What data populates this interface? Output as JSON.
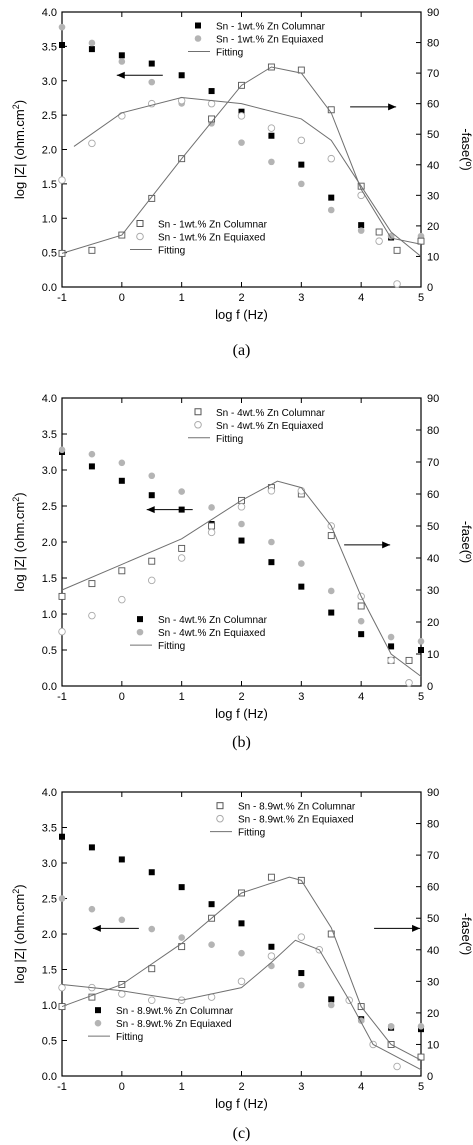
{
  "chart_data": [
    {
      "type": "scatter",
      "caption": "(a)",
      "xlabel": "log f (Hz)",
      "ylabel_left": "log |Z| (ohm.cm",
      "ylabel_left_sup": "2",
      "ylabel_left_end": ")",
      "ylabel_right": "-fase(º)",
      "xlim": [
        -1,
        5
      ],
      "ylim_left": [
        0,
        4
      ],
      "ylim_right": [
        0,
        90
      ],
      "xticks": [
        "-1",
        "0",
        "1",
        "2",
        "3",
        "4",
        "5"
      ],
      "yticks_left": [
        "0.0",
        "0.5",
        "1.0",
        "1.5",
        "2.0",
        "2.5",
        "3.0",
        "3.5",
        "4.0"
      ],
      "yticks_right": [
        "0",
        "10",
        "20",
        "30",
        "40",
        "50",
        "60",
        "70",
        "80",
        "90"
      ],
      "legend_mag": {
        "placement": "top-center",
        "entries": [
          "Sn - 1wt.% Zn Columnar",
          "Sn - 1wt.% Zn Equiaxed",
          "Fitting"
        ]
      },
      "legend_phase": {
        "placement": "bottom-center",
        "entries": [
          "Sn - 1wt.% Zn Columnar",
          "Sn - 1wt.% Zn Equiaxed",
          "Fitting"
        ]
      },
      "arrows": [
        {
          "points_to": "left",
          "at": [
            0.3,
            3.08
          ]
        },
        {
          "points_to": "right",
          "at": [
            4.2,
            2.62
          ]
        }
      ],
      "series": [
        {
          "name": "Sn - 1wt.% Zn Columnar",
          "axis": "left",
          "marker": "filled-square",
          "color": "#000000",
          "x": [
            -1,
            -0.5,
            0,
            0.5,
            1,
            1.5,
            2,
            2.5,
            3,
            3.5,
            4,
            4.5,
            5
          ],
          "y": [
            3.52,
            3.46,
            3.37,
            3.25,
            3.08,
            2.85,
            2.55,
            2.2,
            1.78,
            1.3,
            0.9,
            0.72,
            0.7
          ]
        },
        {
          "name": "Sn - 1wt.% Zn Equiaxed",
          "axis": "left",
          "marker": "filled-circle",
          "color": "#b4b4b4",
          "x": [
            -1,
            -0.5,
            0,
            0.5,
            1,
            1.5,
            2,
            2.5,
            3,
            3.5,
            4,
            4.5,
            5
          ],
          "y": [
            3.78,
            3.55,
            3.28,
            2.98,
            2.67,
            2.38,
            2.1,
            1.82,
            1.5,
            1.12,
            0.82,
            0.74,
            0.74
          ]
        },
        {
          "name": "Sn - 1wt.% Zn Columnar",
          "axis": "right",
          "marker": "open-square",
          "color": "#555555",
          "x": [
            -1,
            -0.5,
            0,
            0.5,
            1,
            1.5,
            2,
            2.5,
            3,
            3.5,
            4,
            4.3,
            4.6,
            5
          ],
          "y": [
            11,
            12,
            17,
            29,
            42,
            55,
            66,
            72,
            71,
            58,
            33,
            18,
            12,
            15
          ]
        },
        {
          "name": "Sn - 1wt.% Zn Equiaxed",
          "axis": "right",
          "marker": "open-circle",
          "color": "#aaaaaa",
          "x": [
            -1,
            -0.5,
            0,
            0.5,
            1,
            1.5,
            2,
            2.5,
            3,
            3.5,
            4,
            4.3,
            4.6
          ],
          "y": [
            35,
            47,
            56,
            60,
            61,
            60,
            56,
            52,
            48,
            42,
            30,
            15,
            1
          ]
        },
        {
          "name": "Fitting",
          "axis": "right",
          "marker": "line",
          "color": "#707070",
          "x": [
            -1,
            0,
            1,
            2,
            2.5,
            3,
            3.5,
            4,
            4.5,
            5
          ],
          "y": [
            11,
            17,
            42,
            66,
            72,
            70,
            57,
            32,
            16,
            14
          ]
        },
        {
          "name": "Fitting",
          "axis": "right",
          "marker": "line",
          "color": "#707070",
          "x": [
            -0.8,
            0,
            1,
            2,
            3,
            3.5,
            4,
            4.5,
            5
          ],
          "y": [
            46,
            57,
            62,
            60,
            55,
            48,
            33,
            18,
            10
          ]
        }
      ]
    },
    {
      "type": "scatter",
      "caption": "(b)",
      "xlabel": "log f (Hz)",
      "ylabel_left": "log |Z| (ohm.cm",
      "ylabel_left_sup": "2",
      "ylabel_left_end": ")",
      "ylabel_right": "-fase(º)",
      "xlim": [
        -1,
        5
      ],
      "ylim_left": [
        0,
        4
      ],
      "ylim_right": [
        0,
        90
      ],
      "xticks": [
        "-1",
        "0",
        "1",
        "2",
        "3",
        "4",
        "5"
      ],
      "yticks_left": [
        "0.0",
        "0.5",
        "1.0",
        "1.5",
        "2.0",
        "2.5",
        "3.0",
        "3.5",
        "4.0"
      ],
      "yticks_right": [
        "0",
        "10",
        "20",
        "30",
        "40",
        "50",
        "60",
        "70",
        "80",
        "90"
      ],
      "legend_mag": {
        "placement": "bottom-center",
        "entries": [
          "Sn - 4wt.% Zn Columnar",
          "Sn - 4wt.% Zn Equiaxed",
          "Fitting"
        ]
      },
      "legend_phase": {
        "placement": "top-center",
        "entries": [
          "Sn - 4wt.% Zn Columnar",
          "Sn - 4wt.% Zn Equiaxed",
          "Fitting"
        ]
      },
      "arrows": [
        {
          "points_to": "left",
          "at": [
            0.8,
            2.45
          ]
        },
        {
          "points_to": "right",
          "at": [
            4.1,
            1.96
          ]
        }
      ],
      "series": [
        {
          "name": "Sn - 4wt.% Zn Columnar",
          "axis": "left",
          "marker": "filled-square",
          "color": "#000000",
          "x": [
            -1,
            -0.5,
            0,
            0.5,
            1,
            1.5,
            2,
            2.5,
            3,
            3.5,
            4,
            4.5,
            5
          ],
          "y": [
            3.25,
            3.05,
            2.85,
            2.65,
            2.45,
            2.25,
            2.02,
            1.72,
            1.38,
            1.02,
            0.72,
            0.55,
            0.5
          ]
        },
        {
          "name": "Sn - 4wt.% Zn Equiaxed",
          "axis": "left",
          "marker": "filled-circle",
          "color": "#b4b4b4",
          "x": [
            -1,
            -0.5,
            0,
            0.5,
            1,
            1.5,
            2,
            2.5,
            3,
            3.5,
            4,
            4.5,
            5
          ],
          "y": [
            3.28,
            3.22,
            3.1,
            2.92,
            2.7,
            2.48,
            2.25,
            2.0,
            1.7,
            1.32,
            0.9,
            0.68,
            0.62
          ]
        },
        {
          "name": "Sn - 4wt.% Zn Columnar",
          "axis": "right",
          "marker": "open-square",
          "color": "#555555",
          "x": [
            -1,
            -0.5,
            0,
            0.5,
            1,
            1.5,
            2,
            2.5,
            3,
            3.5,
            4,
            4.5,
            4.8
          ],
          "y": [
            28,
            32,
            36,
            39,
            43,
            50,
            58,
            62,
            60,
            47,
            25,
            8,
            8
          ]
        },
        {
          "name": "Sn - 4wt.% Zn Equiaxed",
          "axis": "right",
          "marker": "open-circle",
          "color": "#aaaaaa",
          "x": [
            -1,
            -0.5,
            0,
            0.5,
            1,
            1.5,
            2,
            2.5,
            3,
            3.5,
            4,
            4.5,
            4.8
          ],
          "y": [
            17,
            22,
            27,
            33,
            40,
            48,
            56,
            61,
            61,
            50,
            28,
            8,
            1
          ]
        },
        {
          "name": "Fitting",
          "axis": "right",
          "marker": "line",
          "color": "#707070",
          "x": [
            -1,
            0,
            1,
            2,
            2.6,
            3,
            3.5,
            4,
            4.5,
            5
          ],
          "y": [
            30,
            38,
            46,
            58,
            64,
            62,
            50,
            28,
            10,
            3
          ]
        }
      ]
    },
    {
      "type": "scatter",
      "caption": "(c)",
      "xlabel": "log f (Hz)",
      "ylabel_left": "log |Z| (ohm.cm",
      "ylabel_left_sup": "2",
      "ylabel_left_end": ")",
      "ylabel_right": "-fase(º)",
      "xlim": [
        -1,
        5
      ],
      "ylim_left": [
        0,
        4
      ],
      "ylim_right": [
        0,
        90
      ],
      "xticks": [
        "-1",
        "0",
        "1",
        "2",
        "3",
        "4",
        "5"
      ],
      "yticks_left": [
        "0.0",
        "0.5",
        "1.0",
        "1.5",
        "2.0",
        "2.5",
        "3.0",
        "3.5",
        "4.0"
      ],
      "yticks_right": [
        "0",
        "10",
        "20",
        "30",
        "40",
        "50",
        "60",
        "70",
        "80",
        "90"
      ],
      "legend_mag": {
        "placement": "bottom-left",
        "entries": [
          "Sn - 8.9wt.% Zn Columnar",
          "Sn - 8.9wt.% Zn Equiaxed",
          "Fitting"
        ]
      },
      "legend_phase": {
        "placement": "top-right",
        "entries": [
          "Sn - 8.9wt.% Zn Columnar",
          "Sn - 8.9wt.% Zn Equiaxed",
          "Fitting"
        ]
      },
      "arrows": [
        {
          "points_to": "left",
          "at": [
            -0.1,
            2.08
          ]
        },
        {
          "points_to": "right",
          "at": [
            4.6,
            2.08
          ]
        }
      ],
      "series": [
        {
          "name": "Sn - 8.9wt.% Zn Columnar",
          "axis": "left",
          "marker": "filled-square",
          "color": "#000000",
          "x": [
            -1,
            -0.5,
            0,
            0.5,
            1,
            1.5,
            2,
            2.5,
            3,
            3.5,
            4,
            4.5,
            5
          ],
          "y": [
            3.37,
            3.22,
            3.05,
            2.87,
            2.66,
            2.42,
            2.15,
            1.82,
            1.45,
            1.08,
            0.8,
            0.68,
            0.66
          ]
        },
        {
          "name": "Sn - 8.9wt.% Zn Equiaxed",
          "axis": "left",
          "marker": "filled-circle",
          "color": "#b4b4b4",
          "x": [
            -1,
            -0.5,
            0,
            0.5,
            1,
            1.5,
            2,
            2.5,
            3,
            3.5,
            4,
            4.5,
            5
          ],
          "y": [
            2.5,
            2.35,
            2.2,
            2.07,
            1.95,
            1.85,
            1.73,
            1.55,
            1.28,
            1.0,
            0.78,
            0.7,
            0.7
          ]
        },
        {
          "name": "Sn - 8.9wt.% Zn Columnar",
          "axis": "right",
          "marker": "open-square",
          "color": "#555555",
          "x": [
            -1,
            -0.5,
            0,
            0.5,
            1,
            1.5,
            2,
            2.5,
            3,
            3.5,
            4,
            4.5,
            5
          ],
          "y": [
            22,
            25,
            29,
            34,
            41,
            50,
            58,
            63,
            62,
            45,
            22,
            10,
            6
          ]
        },
        {
          "name": "Sn - 8.9wt.% Zn Equiaxed",
          "axis": "right",
          "marker": "open-circle",
          "color": "#aaaaaa",
          "x": [
            -1,
            -0.5,
            0,
            0.5,
            1,
            1.5,
            2,
            2.5,
            3,
            3.3,
            3.8,
            4.2,
            4.6
          ],
          "y": [
            28,
            28,
            26,
            24,
            24,
            25,
            30,
            38,
            44,
            40,
            24,
            10,
            3
          ]
        },
        {
          "name": "Fitting",
          "axis": "right",
          "marker": "line",
          "color": "#707070",
          "x": [
            -1,
            0,
            1,
            2,
            2.8,
            3,
            3.5,
            4,
            4.5,
            5
          ],
          "y": [
            22,
            29,
            42,
            58,
            63,
            62,
            47,
            22,
            10,
            5
          ]
        },
        {
          "name": "Fitting",
          "axis": "right",
          "marker": "line",
          "color": "#707070",
          "x": [
            -1,
            0,
            1,
            2,
            2.5,
            2.9,
            3.3,
            3.8,
            4.2,
            5
          ],
          "y": [
            29,
            27,
            24,
            28,
            36,
            43,
            40,
            24,
            10,
            2
          ]
        }
      ]
    }
  ]
}
